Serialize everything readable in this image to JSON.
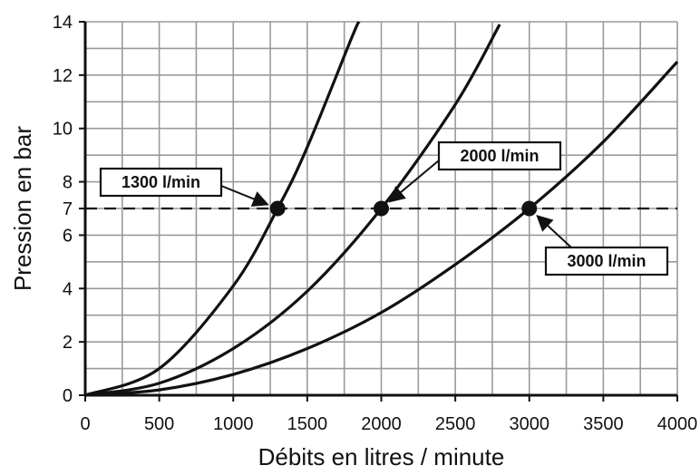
{
  "chart_data": {
    "type": "line",
    "title": "",
    "xlabel": "Débits en litres / minute",
    "ylabel": "Pression en bar",
    "xlim": [
      0,
      4000
    ],
    "ylim": [
      0,
      14
    ],
    "x_ticks": [
      "0",
      "500",
      "1000",
      "1500",
      "2000",
      "2500",
      "3000",
      "3500",
      "4000"
    ],
    "y_ticks": [
      "0",
      "2",
      "4",
      "6",
      "7",
      "8",
      "10",
      "12",
      "14"
    ],
    "grid": true,
    "series": [
      {
        "x": [
          0,
          500,
          1000,
          1300,
          1500,
          1800,
          1850
        ],
        "y": [
          0,
          1.0,
          4.1,
          7.0,
          9.3,
          13.4,
          14.0
        ]
      },
      {
        "x": [
          0,
          500,
          1000,
          1500,
          2000,
          2500,
          2800
        ],
        "y": [
          0,
          0.45,
          1.75,
          3.9,
          7.0,
          10.9,
          13.9
        ]
      },
      {
        "x": [
          0,
          500,
          1000,
          1500,
          2000,
          2500,
          3000,
          3500,
          4000
        ],
        "y": [
          0,
          0.2,
          0.78,
          1.75,
          3.1,
          4.9,
          7.0,
          9.5,
          12.5
        ]
      }
    ],
    "reference_line": {
      "y": 7,
      "style": "dashed"
    },
    "annotations": [
      {
        "label": "1300 l/min",
        "x": 1300,
        "y": 7
      },
      {
        "label": "2000 l/min",
        "x": 2000,
        "y": 7
      },
      {
        "label": "3000 l/min",
        "x": 3000,
        "y": 7
      }
    ]
  }
}
